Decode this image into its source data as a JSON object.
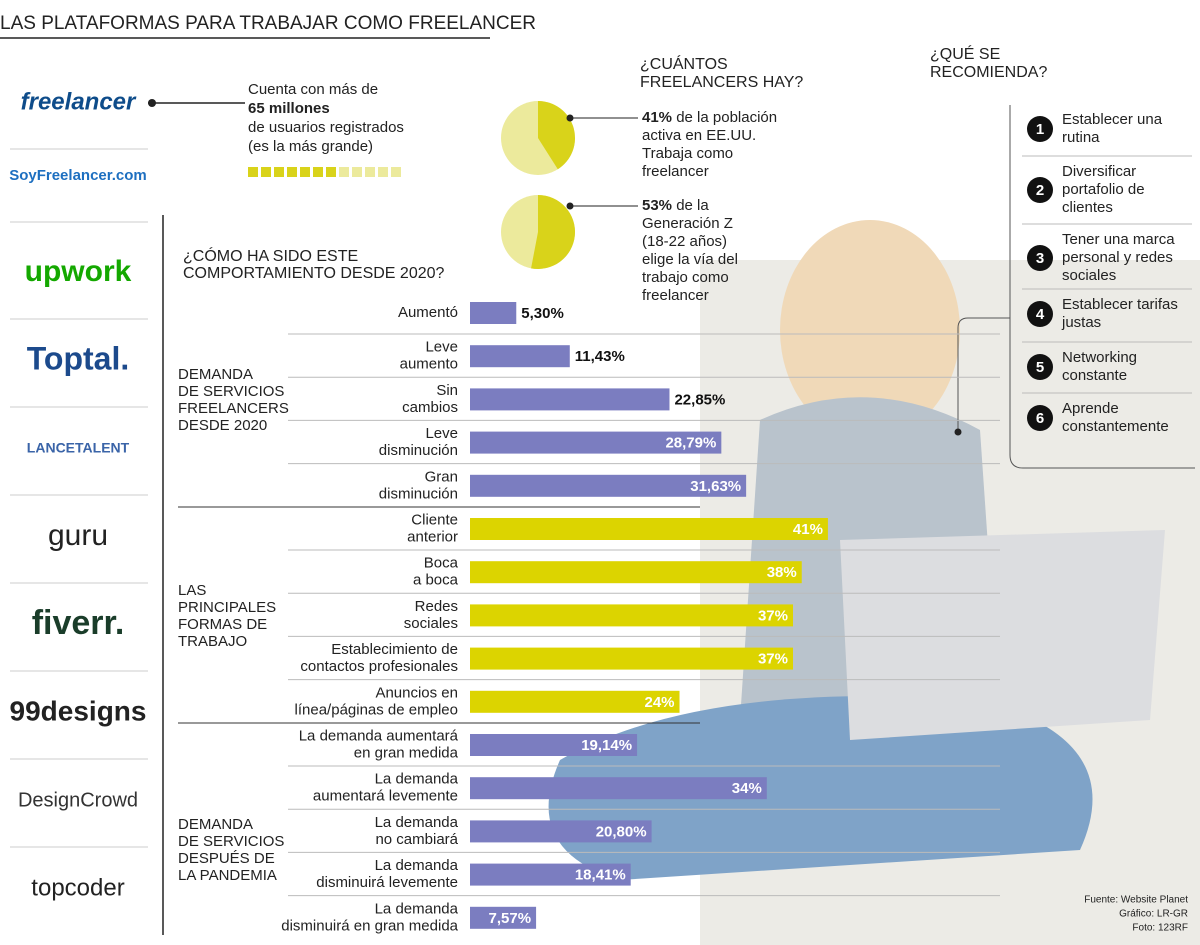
{
  "title": "LAS PLATAFORMAS PARA TRABAJAR COMO FREELANCER",
  "platforms": [
    "freelancer",
    "SoyFreelancer.com",
    "upwork",
    "Toptal.",
    "LANCETALENT",
    "guru",
    "fiverr.",
    "99designs",
    "DesignCrowd",
    "topcoder"
  ],
  "freelancer_note": [
    "Cuenta con más de",
    "65 millones",
    "de usuarios registrados",
    "(es la más grande)"
  ],
  "how_many": {
    "title": [
      "¿CUÁNTOS",
      "FREELANCERS HAY?"
    ],
    "items": [
      {
        "value": 41,
        "value_label": "41%",
        "lines": [
          "de la población",
          "activa en EE.UU.",
          "Trabaja como",
          "freelancer"
        ]
      },
      {
        "value": 53,
        "value_label": "53%",
        "lines": [
          "de la",
          "Generación Z",
          "(18-22 años)",
          "elige la vía del",
          "trabajo como",
          "freelancer"
        ]
      }
    ]
  },
  "recommend": {
    "title": [
      "¿QUÉ SE",
      "RECOMIENDA?"
    ],
    "items": [
      {
        "number": "1",
        "lines": [
          "Establecer una",
          "rutina"
        ]
      },
      {
        "number": "2",
        "lines": [
          "Diversificar",
          "portafolio de",
          "clientes"
        ]
      },
      {
        "number": "3",
        "lines": [
          "Tener una marca",
          "personal y redes",
          "sociales"
        ]
      },
      {
        "number": "4",
        "lines": [
          "Establecer tarifas",
          "justas"
        ]
      },
      {
        "number": "5",
        "lines": [
          "Networking",
          "constante"
        ]
      },
      {
        "number": "6",
        "lines": [
          "Aprende",
          "constantemente"
        ]
      }
    ]
  },
  "behavior": {
    "title": [
      "¿CÓMO HA SIDO ESTE",
      "COMPORTAMIENTO DESDE 2020?"
    ],
    "groups": [
      {
        "label": [
          "DEMANDA",
          "DE SERVICIOS",
          "FREELANCERS",
          "DESDE 2020"
        ],
        "color": "#7b7dc0",
        "items": [
          {
            "label": [
              "Aumentó"
            ],
            "value": 5.3,
            "value_label": "5,30%"
          },
          {
            "label": [
              "Leve",
              "aumento"
            ],
            "value": 11.43,
            "value_label": "11,43%"
          },
          {
            "label": [
              "Sin",
              "cambios"
            ],
            "value": 22.85,
            "value_label": "22,85%"
          },
          {
            "label": [
              "Leve",
              "disminución"
            ],
            "value": 28.79,
            "value_label": "28,79%"
          },
          {
            "label": [
              "Gran",
              "disminución"
            ],
            "value": 31.63,
            "value_label": "31,63%"
          }
        ]
      },
      {
        "label": [
          "LAS",
          "PRINCIPALES",
          "FORMAS DE",
          "TRABAJO"
        ],
        "color": "#dcd400",
        "items": [
          {
            "label": [
              "Cliente",
              "anterior"
            ],
            "value": 41,
            "value_label": "41%"
          },
          {
            "label": [
              "Boca",
              "a boca"
            ],
            "value": 38,
            "value_label": "38%"
          },
          {
            "label": [
              "Redes",
              "sociales"
            ],
            "value": 37,
            "value_label": "37%"
          },
          {
            "label": [
              "Establecimiento de",
              "contactos profesionales"
            ],
            "value": 37,
            "value_label": "37%"
          },
          {
            "label": [
              "Anuncios en",
              "línea/páginas de empleo"
            ],
            "value": 24,
            "value_label": "24%"
          }
        ]
      },
      {
        "label": [
          "DEMANDA",
          "DE SERVICIOS",
          "DESPUÉS DE",
          "LA PANDEMIA"
        ],
        "color": "#7b7dc0",
        "items": [
          {
            "label": [
              "La demanda aumentará",
              "en gran medida"
            ],
            "value": 19.14,
            "value_label": "19,14%"
          },
          {
            "label": [
              "La demanda",
              "aumentará levemente"
            ],
            "value": 34,
            "value_label": "34%"
          },
          {
            "label": [
              "La demanda",
              "no cambiará"
            ],
            "value": 20.8,
            "value_label": "20,80%"
          },
          {
            "label": [
              "La demanda",
              "disminuirá levemente"
            ],
            "value": 18.41,
            "value_label": "18,41%"
          },
          {
            "label": [
              "La demanda",
              "disminuirá en gran medida"
            ],
            "value": 7.57,
            "value_label": "7,57%"
          }
        ]
      }
    ]
  },
  "source": [
    "Fuente: Website Planet",
    "Gráfico: LR-GR",
    "Foto: 123RF"
  ]
}
